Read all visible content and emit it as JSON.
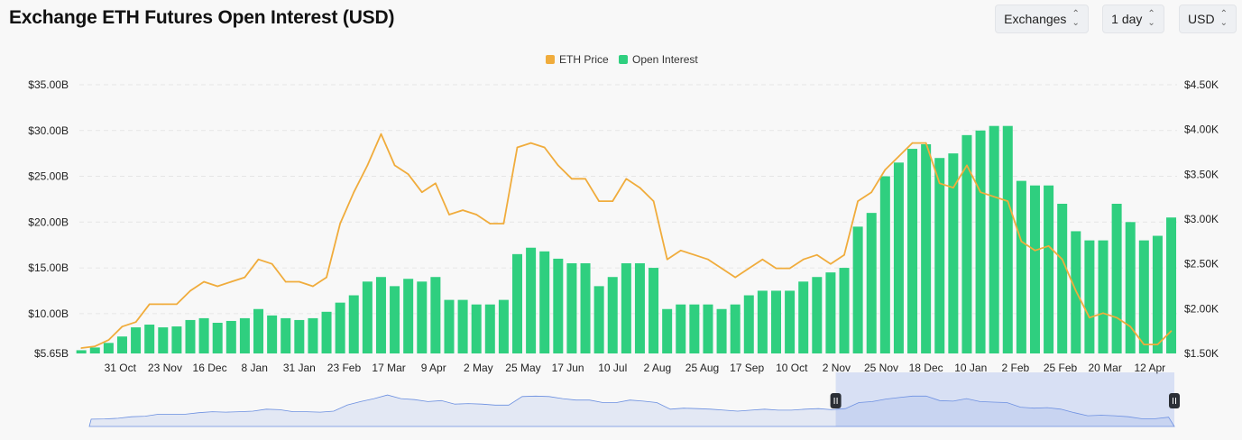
{
  "header": {
    "title": "Exchange ETH Futures Open Interest (USD)",
    "selectors": [
      {
        "label": "Exchanges",
        "icon": "updown-chevron-icon"
      },
      {
        "label": "1 day",
        "icon": "updown-chevron-icon"
      },
      {
        "label": "USD",
        "icon": "updown-chevron-icon"
      }
    ]
  },
  "colors": {
    "price": "#f0ac3c",
    "open_interest": "#2fcf7f",
    "navigator": "#6b8fe0"
  },
  "chart_data": {
    "type": "bar+line",
    "legend_position": "top-center",
    "grid": true,
    "x_ticks": [
      "31 Oct",
      "23 Nov",
      "16 Dec",
      "8 Jan",
      "31 Jan",
      "23 Feb",
      "17 Mar",
      "9 Apr",
      "2 May",
      "25 May",
      "17 Jun",
      "10 Jul",
      "2 Aug",
      "25 Aug",
      "17 Sep",
      "10 Oct",
      "2 Nov",
      "25 Nov",
      "18 Dec",
      "10 Jan",
      "2 Feb",
      "25 Feb",
      "20 Mar",
      "12 Apr"
    ],
    "x_tick_dates": [
      "2023-10-31",
      "2023-11-23",
      "2023-12-16",
      "2024-01-08",
      "2024-01-31",
      "2024-02-23",
      "2024-03-17",
      "2024-04-09",
      "2024-05-02",
      "2024-05-25",
      "2024-06-17",
      "2024-07-10",
      "2024-08-02",
      "2024-08-25",
      "2024-09-17",
      "2024-10-10",
      "2024-11-02",
      "2024-11-25",
      "2024-12-18",
      "2025-01-10",
      "2025-02-02",
      "2025-02-25",
      "2025-03-20",
      "2025-04-12"
    ],
    "left_axis": {
      "ticks": [
        "$35.00B",
        "$30.00B",
        "$25.00B",
        "$20.00B",
        "$15.00B",
        "$10.00B",
        "$5.65B"
      ],
      "tick_values": [
        35,
        30,
        25,
        20,
        15,
        10,
        5.65
      ],
      "ylim": [
        5.65,
        35
      ]
    },
    "right_axis": {
      "ticks": [
        "$4.50K",
        "$4.00K",
        "$3.50K",
        "$3.00K",
        "$2.50K",
        "$2.00K",
        "$1.50K"
      ],
      "tick_values": [
        4.5,
        4.0,
        3.5,
        3.0,
        2.5,
        2.0,
        1.5
      ],
      "ylim": [
        1.5,
        4.5
      ]
    },
    "x": [
      "2023-10-11",
      "2023-10-18",
      "2023-10-25",
      "2023-11-01",
      "2023-11-08",
      "2023-11-15",
      "2023-11-22",
      "2023-11-29",
      "2023-12-06",
      "2023-12-13",
      "2023-12-20",
      "2023-12-27",
      "2024-01-03",
      "2024-01-10",
      "2024-01-17",
      "2024-01-24",
      "2024-01-31",
      "2024-02-07",
      "2024-02-14",
      "2024-02-21",
      "2024-02-28",
      "2024-03-06",
      "2024-03-13",
      "2024-03-20",
      "2024-03-27",
      "2024-04-03",
      "2024-04-10",
      "2024-04-17",
      "2024-04-24",
      "2024-05-01",
      "2024-05-08",
      "2024-05-15",
      "2024-05-22",
      "2024-05-29",
      "2024-06-05",
      "2024-06-12",
      "2024-06-19",
      "2024-06-26",
      "2024-07-03",
      "2024-07-10",
      "2024-07-17",
      "2024-07-24",
      "2024-07-31",
      "2024-08-07",
      "2024-08-14",
      "2024-08-21",
      "2024-08-28",
      "2024-09-04",
      "2024-09-11",
      "2024-09-18",
      "2024-09-25",
      "2024-10-02",
      "2024-10-09",
      "2024-10-16",
      "2024-10-23",
      "2024-10-30",
      "2024-11-06",
      "2024-11-13",
      "2024-11-20",
      "2024-11-27",
      "2024-12-04",
      "2024-12-11",
      "2024-12-18",
      "2024-12-25",
      "2025-01-01",
      "2025-01-08",
      "2025-01-15",
      "2025-01-22",
      "2025-01-29",
      "2025-02-05",
      "2025-02-12",
      "2025-02-19",
      "2025-02-26",
      "2025-03-05",
      "2025-03-12",
      "2025-03-19",
      "2025-03-26",
      "2025-04-02",
      "2025-04-09",
      "2025-04-16",
      "2025-04-23"
    ],
    "series": [
      {
        "name": "ETH Price",
        "type": "line",
        "axis": "right",
        "unit": "K USD",
        "values": [
          1.56,
          1.58,
          1.65,
          1.8,
          1.85,
          2.05,
          2.05,
          2.05,
          2.2,
          2.3,
          2.25,
          2.3,
          2.35,
          2.55,
          2.5,
          2.3,
          2.3,
          2.25,
          2.35,
          2.95,
          3.3,
          3.6,
          3.95,
          3.6,
          3.5,
          3.3,
          3.4,
          3.05,
          3.1,
          3.05,
          2.95,
          2.95,
          3.8,
          3.85,
          3.8,
          3.6,
          3.45,
          3.45,
          3.2,
          3.2,
          3.45,
          3.35,
          3.2,
          2.55,
          2.65,
          2.6,
          2.55,
          2.45,
          2.35,
          2.45,
          2.55,
          2.45,
          2.45,
          2.55,
          2.6,
          2.5,
          2.6,
          3.2,
          3.3,
          3.55,
          3.7,
          3.85,
          3.85,
          3.4,
          3.35,
          3.6,
          3.3,
          3.25,
          3.2,
          2.75,
          2.65,
          2.7,
          2.55,
          2.2,
          1.9,
          1.95,
          1.9,
          1.8,
          1.6,
          1.6,
          1.75
        ]
      },
      {
        "name": "Open Interest",
        "type": "bar",
        "axis": "left",
        "unit": "B USD",
        "values": [
          6.0,
          6.3,
          6.8,
          7.5,
          8.5,
          8.8,
          8.5,
          8.6,
          9.3,
          9.5,
          9.0,
          9.2,
          9.5,
          10.5,
          9.8,
          9.5,
          9.3,
          9.5,
          10.2,
          11.2,
          12.0,
          13.5,
          14.0,
          13.0,
          13.8,
          13.5,
          14.0,
          11.5,
          11.5,
          11.0,
          11.0,
          11.5,
          16.5,
          17.2,
          16.8,
          16.0,
          15.5,
          15.5,
          13.0,
          14.0,
          15.5,
          15.5,
          15.0,
          10.5,
          11.0,
          11.0,
          11.0,
          10.5,
          11.0,
          12.0,
          12.5,
          12.5,
          12.5,
          13.5,
          14.0,
          14.5,
          15.0,
          19.5,
          21.0,
          25.0,
          26.5,
          28.0,
          28.5,
          27.0,
          27.5,
          29.5,
          30.0,
          30.5,
          30.5,
          24.5,
          24.0,
          24.0,
          22.0,
          19.0,
          18.0,
          18.0,
          22.0,
          20.0,
          18.0,
          18.5,
          20.5
        ]
      }
    ],
    "navigator_selection": [
      "2024-11-01",
      "2025-04-26"
    ]
  }
}
